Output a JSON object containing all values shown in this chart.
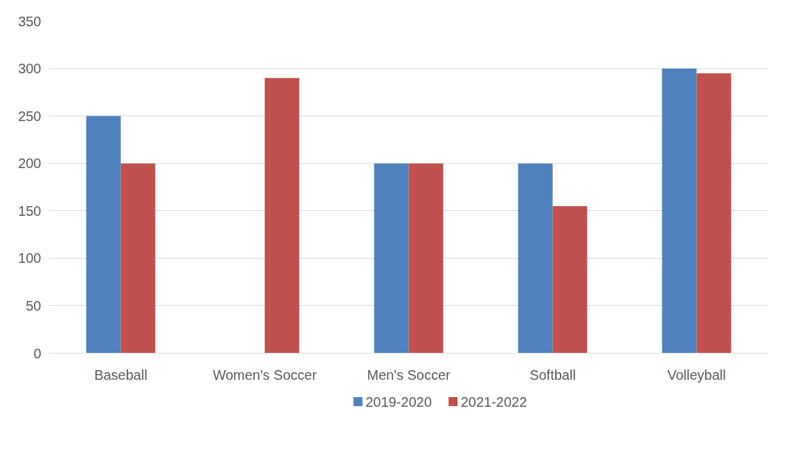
{
  "chart_data": {
    "type": "bar",
    "categories": [
      "Baseball",
      "Women's Soccer",
      "Men's Soccer",
      "Softball",
      "Volleyball"
    ],
    "series": [
      {
        "name": "2019-2020",
        "color": "#4f81bd",
        "values": [
          250,
          null,
          200,
          200,
          300
        ]
      },
      {
        "name": "2021-2022",
        "color": "#c0504d",
        "values": [
          200,
          290,
          200,
          155,
          295
        ]
      }
    ],
    "ylim": [
      0,
      350
    ],
    "yticks": [
      0,
      50,
      100,
      150,
      200,
      250,
      300,
      350
    ],
    "grid": "y",
    "legend": "bottom"
  }
}
